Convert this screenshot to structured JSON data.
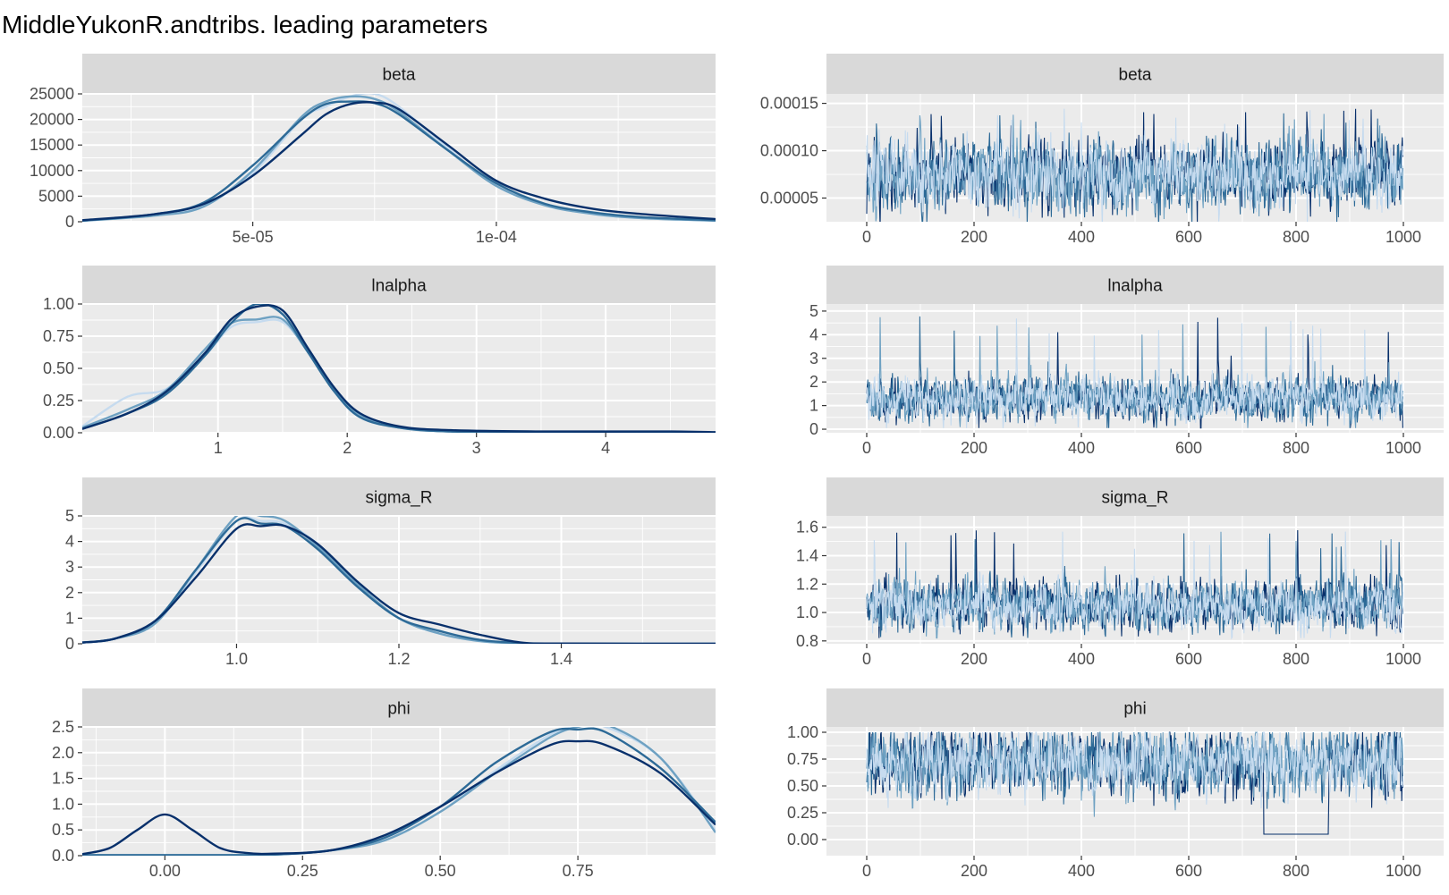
{
  "title": "MiddleYukonR.andtribs. leading parameters",
  "colors": {
    "panel_bg": "#ebebeb",
    "strip_bg": "#d9d9d9",
    "grid_major": "#ffffff",
    "chains": [
      "#08306b",
      "#2d6a97",
      "#6ea1c2",
      "#c6dbef"
    ]
  },
  "chart_data": [
    {
      "type": "line",
      "kind": "density",
      "strip": "beta",
      "xlim": [
        1.5e-05,
        0.000145
      ],
      "ylim": [
        0,
        25000
      ],
      "x_ticks": [
        5e-05,
        0.0001
      ],
      "x_tick_labels": [
        "5e-05",
        "1e-04"
      ],
      "y_ticks": [
        0,
        5000,
        10000,
        15000,
        20000,
        25000
      ],
      "y_tick_labels": [
        "0",
        "5000",
        "10000",
        "15000",
        "20000",
        "25000"
      ],
      "series": [
        {
          "x": [
            1.5e-05,
            3e-05,
            4e-05,
            5e-05,
            6e-05,
            6.5e-05,
            7e-05,
            7.5e-05,
            8e-05,
            9e-05,
            0.0001,
            0.00011,
            0.00012,
            0.00013,
            0.000145
          ],
          "y": [
            300,
            1500,
            3500,
            9000,
            17000,
            21000,
            23000,
            23300,
            22000,
            15000,
            8000,
            4500,
            2500,
            1500,
            500
          ]
        },
        {
          "x": [
            1.5e-05,
            3e-05,
            4e-05,
            5e-05,
            6e-05,
            6.5e-05,
            7e-05,
            7.5e-05,
            8e-05,
            9e-05,
            0.0001,
            0.00011,
            0.00012,
            0.00013,
            0.000145
          ],
          "y": [
            200,
            1500,
            3800,
            11000,
            20000,
            23000,
            23500,
            23200,
            21000,
            14000,
            7500,
            3500,
            1800,
            900,
            300
          ]
        },
        {
          "x": [
            1.5e-05,
            3e-05,
            4e-05,
            5e-05,
            6e-05,
            6.5e-05,
            7e-05,
            7.5e-05,
            8e-05,
            9e-05,
            0.0001,
            0.00011,
            0.00012,
            0.00013,
            0.000145
          ],
          "y": [
            200,
            1200,
            3000,
            10000,
            20500,
            23500,
            24500,
            24000,
            21500,
            14000,
            7000,
            3200,
            1500,
            700,
            200
          ]
        },
        {
          "x": [
            1.5e-05,
            3e-05,
            4e-05,
            5e-05,
            6e-05,
            6.5e-05,
            7e-05,
            7.5e-05,
            8e-05,
            9e-05,
            0.0001,
            0.00011,
            0.00012,
            0.00013,
            0.000145
          ],
          "y": [
            200,
            1300,
            3200,
            9500,
            20000,
            22500,
            24500,
            25000,
            22500,
            14500,
            7000,
            3300,
            1500,
            700,
            200
          ]
        }
      ]
    },
    {
      "type": "line",
      "kind": "trace",
      "strip": "beta",
      "xlim": [
        -75,
        1075
      ],
      "ylim": [
        2.5e-05,
        0.00016
      ],
      "x_ticks": [
        0,
        200,
        400,
        600,
        800,
        1000
      ],
      "x_tick_labels": [
        "0",
        "200",
        "400",
        "600",
        "800",
        "1000"
      ],
      "y_ticks": [
        5e-05,
        0.0001,
        0.00015
      ],
      "y_tick_labels": [
        "0.00005",
        "0.00010",
        "0.00015"
      ],
      "trace_summary": {
        "center": 7.5e-05,
        "spread": 1.7e-05,
        "min": 2e-05,
        "max": 0.000145,
        "n": 1000
      }
    },
    {
      "type": "line",
      "kind": "density",
      "strip": "lnalpha",
      "xlim": [
        -0.05,
        4.85
      ],
      "ylim": [
        0,
        1
      ],
      "x_ticks": [
        1,
        2,
        3,
        4
      ],
      "x_tick_labels": [
        "1",
        "2",
        "3",
        "4"
      ],
      "y_ticks": [
        0,
        0.25,
        0.5,
        0.75,
        1
      ],
      "y_tick_labels": [
        "0.00",
        "0.25",
        "0.50",
        "0.75",
        "1.00"
      ],
      "series": [
        {
          "x": [
            -0.05,
            0.3,
            0.6,
            0.9,
            1.1,
            1.3,
            1.5,
            1.7,
            1.9,
            2.1,
            2.4,
            2.8,
            3.5,
            4.5,
            4.85
          ],
          "y": [
            0.03,
            0.15,
            0.32,
            0.62,
            0.88,
            0.98,
            0.95,
            0.65,
            0.35,
            0.15,
            0.05,
            0.02,
            0.01,
            0.01,
            0.005
          ]
        },
        {
          "x": [
            -0.05,
            0.3,
            0.6,
            0.9,
            1.1,
            1.3,
            1.5,
            1.7,
            1.9,
            2.1,
            2.4,
            2.8,
            3.5,
            4.5,
            4.85
          ],
          "y": [
            0.03,
            0.15,
            0.3,
            0.6,
            0.85,
            1.0,
            0.92,
            0.62,
            0.32,
            0.12,
            0.04,
            0.01,
            0.005,
            0.002,
            0.0
          ]
        },
        {
          "x": [
            -0.05,
            0.3,
            0.6,
            0.9,
            1.1,
            1.3,
            1.5,
            1.7,
            1.9,
            2.1,
            2.4,
            2.8,
            3.5,
            4.5,
            4.85
          ],
          "y": [
            0.04,
            0.18,
            0.33,
            0.65,
            0.85,
            0.88,
            0.88,
            0.62,
            0.33,
            0.14,
            0.04,
            0.01,
            0.005,
            0.002,
            0.0
          ]
        },
        {
          "x": [
            -0.05,
            0.3,
            0.6,
            0.9,
            1.1,
            1.3,
            1.5,
            1.7,
            1.9,
            2.1,
            2.4,
            2.8,
            3.5,
            4.5,
            4.85
          ],
          "y": [
            0.05,
            0.28,
            0.34,
            0.6,
            0.82,
            0.86,
            0.86,
            0.63,
            0.32,
            0.12,
            0.04,
            0.01,
            0.005,
            0.002,
            0.0
          ]
        }
      ]
    },
    {
      "type": "line",
      "kind": "trace",
      "strip": "lnalpha",
      "xlim": [
        -75,
        1075
      ],
      "ylim": [
        -0.15,
        5.3
      ],
      "x_ticks": [
        0,
        200,
        400,
        600,
        800,
        1000
      ],
      "x_tick_labels": [
        "0",
        "200",
        "400",
        "600",
        "800",
        "1000"
      ],
      "y_ticks": [
        0,
        1,
        2,
        3,
        4,
        5
      ],
      "y_tick_labels": [
        "0",
        "1",
        "2",
        "3",
        "4",
        "5"
      ],
      "trace_summary": {
        "center": 1.3,
        "spread": 0.42,
        "min": 0.05,
        "max": 4.8,
        "n": 1000
      }
    },
    {
      "type": "line",
      "kind": "density",
      "strip": "sigma_R",
      "xlim": [
        0.81,
        1.59
      ],
      "ylim": [
        0,
        5
      ],
      "x_ticks": [
        1.0,
        1.2,
        1.4
      ],
      "x_tick_labels": [
        "1.0",
        "1.2",
        "1.4"
      ],
      "y_ticks": [
        0,
        1,
        2,
        3,
        4,
        5
      ],
      "y_tick_labels": [
        "0",
        "1",
        "2",
        "3",
        "4",
        "5"
      ],
      "series": [
        {
          "x": [
            0.81,
            0.85,
            0.9,
            0.95,
            1.0,
            1.03,
            1.06,
            1.1,
            1.15,
            1.2,
            1.25,
            1.3,
            1.35,
            1.4,
            1.59
          ],
          "y": [
            0.05,
            0.2,
            0.9,
            2.6,
            4.5,
            4.6,
            4.6,
            3.9,
            2.4,
            1.2,
            0.75,
            0.35,
            0.05,
            0.01,
            0.0
          ]
        },
        {
          "x": [
            0.81,
            0.85,
            0.9,
            0.95,
            1.0,
            1.03,
            1.06,
            1.1,
            1.15,
            1.2,
            1.25,
            1.3,
            1.35,
            1.4,
            1.59
          ],
          "y": [
            0.05,
            0.2,
            0.9,
            2.9,
            4.8,
            4.7,
            4.6,
            3.7,
            2.2,
            1.0,
            0.5,
            0.15,
            0.03,
            0.01,
            0.0
          ]
        },
        {
          "x": [
            0.81,
            0.85,
            0.9,
            0.95,
            1.0,
            1.03,
            1.06,
            1.1,
            1.15,
            1.2,
            1.25,
            1.3,
            1.35,
            1.4,
            1.59
          ],
          "y": [
            0.05,
            0.2,
            0.8,
            2.9,
            5.0,
            5.0,
            4.8,
            3.8,
            2.3,
            1.0,
            0.4,
            0.1,
            0.02,
            0.0,
            0.0
          ]
        },
        {
          "x": [
            0.81,
            0.85,
            0.9,
            0.95,
            1.0,
            1.03,
            1.06,
            1.1,
            1.15,
            1.2,
            1.25,
            1.3,
            1.35,
            1.4,
            1.59
          ],
          "y": [
            0.05,
            0.2,
            0.8,
            2.8,
            4.8,
            4.8,
            4.7,
            3.9,
            2.3,
            1.0,
            0.4,
            0.1,
            0.02,
            0.0,
            0.0
          ]
        }
      ]
    },
    {
      "type": "line",
      "kind": "trace",
      "strip": "sigma_R",
      "xlim": [
        -75,
        1075
      ],
      "ylim": [
        0.78,
        1.68
      ],
      "x_ticks": [
        0,
        200,
        400,
        600,
        800,
        1000
      ],
      "x_tick_labels": [
        "0",
        "200",
        "400",
        "600",
        "800",
        "1000"
      ],
      "y_ticks": [
        0.8,
        1.0,
        1.2,
        1.4,
        1.6
      ],
      "y_tick_labels": [
        "0.8",
        "1.0",
        "1.2",
        "1.4",
        "1.6"
      ],
      "trace_summary": {
        "center": 1.05,
        "spread": 0.08,
        "min": 0.82,
        "max": 1.58,
        "n": 1000
      }
    },
    {
      "type": "line",
      "kind": "density",
      "strip": "phi",
      "xlim": [
        -0.15,
        1.0
      ],
      "ylim": [
        0,
        2.5
      ],
      "x_ticks": [
        0,
        0.25,
        0.5,
        0.75
      ],
      "x_tick_labels": [
        "0.00",
        "0.25",
        "0.50",
        "0.75"
      ],
      "y_ticks": [
        0,
        0.5,
        1,
        1.5,
        2,
        2.5
      ],
      "y_tick_labels": [
        "0.0",
        "0.5",
        "1.0",
        "1.5",
        "2.0",
        "2.5"
      ],
      "series": [
        {
          "x": [
            -0.15,
            -0.1,
            -0.05,
            0.0,
            0.05,
            0.1,
            0.15,
            0.2,
            0.3,
            0.4,
            0.5,
            0.6,
            0.7,
            0.75,
            0.8,
            0.9,
            1.0
          ],
          "y": [
            0.03,
            0.15,
            0.5,
            0.8,
            0.5,
            0.15,
            0.05,
            0.04,
            0.1,
            0.4,
            0.95,
            1.6,
            2.15,
            2.22,
            2.15,
            1.6,
            0.6
          ]
        },
        {
          "x": [
            -0.15,
            -0.1,
            -0.05,
            0.0,
            0.05,
            0.1,
            0.15,
            0.2,
            0.3,
            0.4,
            0.5,
            0.6,
            0.7,
            0.75,
            0.8,
            0.9,
            1.0
          ],
          "y": [
            0.01,
            0.01,
            0.01,
            0.01,
            0.01,
            0.01,
            0.01,
            0.02,
            0.1,
            0.35,
            0.95,
            1.8,
            2.4,
            2.45,
            2.4,
            1.7,
            0.65
          ]
        },
        {
          "x": [
            -0.15,
            -0.1,
            -0.05,
            0.0,
            0.05,
            0.1,
            0.15,
            0.2,
            0.3,
            0.4,
            0.5,
            0.6,
            0.7,
            0.75,
            0.8,
            0.9,
            1.0
          ],
          "y": [
            0.01,
            0.01,
            0.01,
            0.01,
            0.01,
            0.01,
            0.01,
            0.02,
            0.1,
            0.3,
            0.85,
            1.6,
            2.3,
            2.5,
            2.55,
            1.9,
            0.45
          ]
        },
        {
          "x": [
            -0.15,
            -0.1,
            -0.05,
            0.0,
            0.05,
            0.1,
            0.15,
            0.2,
            0.3,
            0.4,
            0.5,
            0.6,
            0.7,
            0.75,
            0.8,
            0.9,
            1.0
          ],
          "y": [
            0.01,
            0.01,
            0.01,
            0.01,
            0.01,
            0.01,
            0.01,
            0.02,
            0.1,
            0.3,
            0.85,
            1.65,
            2.35,
            2.5,
            2.5,
            1.9,
            0.5
          ]
        }
      ]
    },
    {
      "type": "line",
      "kind": "trace",
      "strip": "phi",
      "xlim": [
        -75,
        1075
      ],
      "ylim": [
        -0.15,
        1.05
      ],
      "x_ticks": [
        0,
        200,
        400,
        600,
        800,
        1000
      ],
      "x_tick_labels": [
        "0",
        "200",
        "400",
        "600",
        "800",
        "1000"
      ],
      "y_ticks": [
        0,
        0.25,
        0.5,
        0.75,
        1
      ],
      "y_tick_labels": [
        "0.00",
        "0.25",
        "0.50",
        "0.75",
        "1.00"
      ],
      "trace_summary": {
        "center": 0.72,
        "spread": 0.14,
        "min": 0.05,
        "max": 1.0,
        "n": 1000,
        "dip_start": 740,
        "dip_end": 860,
        "dip_level": 0.0
      }
    }
  ]
}
